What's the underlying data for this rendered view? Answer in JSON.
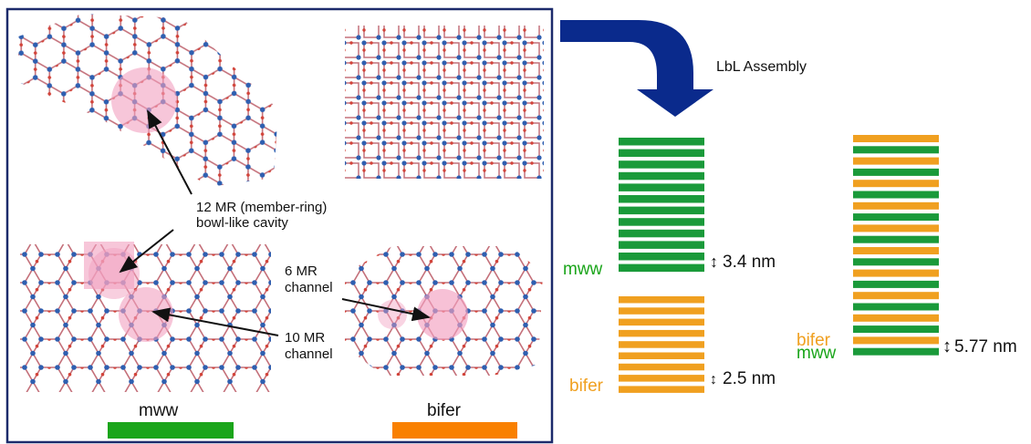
{
  "panel": {
    "cavity_label": [
      "12 MR (member-ring)",
      "bowl-like cavity"
    ],
    "six_mr_label": [
      "6 MR",
      "channel"
    ],
    "ten_mr_label": [
      "10 MR",
      "channel"
    ],
    "mww_label": "mww",
    "bifer_label": "bifer"
  },
  "assembly": {
    "arrow_label": "LbL Assembly",
    "mww_stack": {
      "name": "mww",
      "spacing": "3.4 nm"
    },
    "bifer_stack": {
      "name": "bifer",
      "spacing": "2.5 nm"
    },
    "combined_stack": {
      "top_name": "bifer",
      "bottom_name": "mww",
      "spacing": "5.77 nm"
    }
  }
}
